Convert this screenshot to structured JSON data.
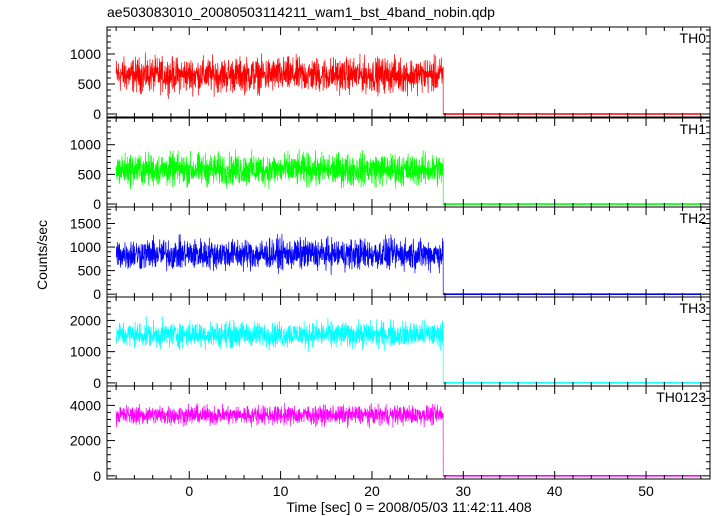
{
  "chart_data": {
    "type": "line",
    "title": "ae503083010_20080503114211_wam1_bst_4band_nobin.qdp",
    "xlabel": "Time [sec] 0 = 2008/05/03 11:42:11.408",
    "ylabel": "Counts/sec",
    "xlim": [
      -9,
      57
    ],
    "xticks_major": [
      0,
      10,
      20,
      30,
      40,
      50
    ],
    "xtick_labels": [
      "0",
      "10",
      "20",
      "30",
      "40",
      "50"
    ],
    "data_x_range": [
      -8.0,
      56.0
    ],
    "drop_time": 27.8,
    "grid": false,
    "legend": "none",
    "panels": [
      {
        "name": "TH0",
        "color": "#ff0000",
        "ylim": [
          -50,
          1450
        ],
        "yticks": [
          0,
          500,
          1000
        ],
        "ytick_labels": [
          "0",
          "500",
          "1000"
        ],
        "burst_level": 650,
        "burst_spread": 420,
        "post_level": 0
      },
      {
        "name": "TH1",
        "color": "#00ff00",
        "ylim": [
          -50,
          1450
        ],
        "yticks": [
          0,
          500,
          1000
        ],
        "ytick_labels": [
          "0",
          "500",
          "1000"
        ],
        "burst_level": 580,
        "burst_spread": 400,
        "post_level": 0
      },
      {
        "name": "TH2",
        "color": "#0000ff",
        "ylim": [
          -60,
          1850
        ],
        "yticks": [
          0,
          500,
          1000,
          1500
        ],
        "ytick_labels": [
          "0",
          "500",
          "1000",
          "1500"
        ],
        "burst_level": 850,
        "burst_spread": 480,
        "post_level": 0
      },
      {
        "name": "TH3",
        "color": "#00ffff",
        "ylim": [
          -100,
          2750
        ],
        "yticks": [
          0,
          1000,
          2000
        ],
        "ytick_labels": [
          "0",
          "1000",
          "2000"
        ],
        "burst_level": 1550,
        "burst_spread": 600,
        "post_level": 0
      },
      {
        "name": "TH0123",
        "color": "#ff00ff",
        "ylim": [
          -180,
          5100
        ],
        "yticks": [
          0,
          2000,
          4000
        ],
        "ytick_labels": [
          "0",
          "2000",
          "4000"
        ],
        "burst_level": 3450,
        "burst_spread": 800,
        "post_level": 0
      }
    ]
  }
}
